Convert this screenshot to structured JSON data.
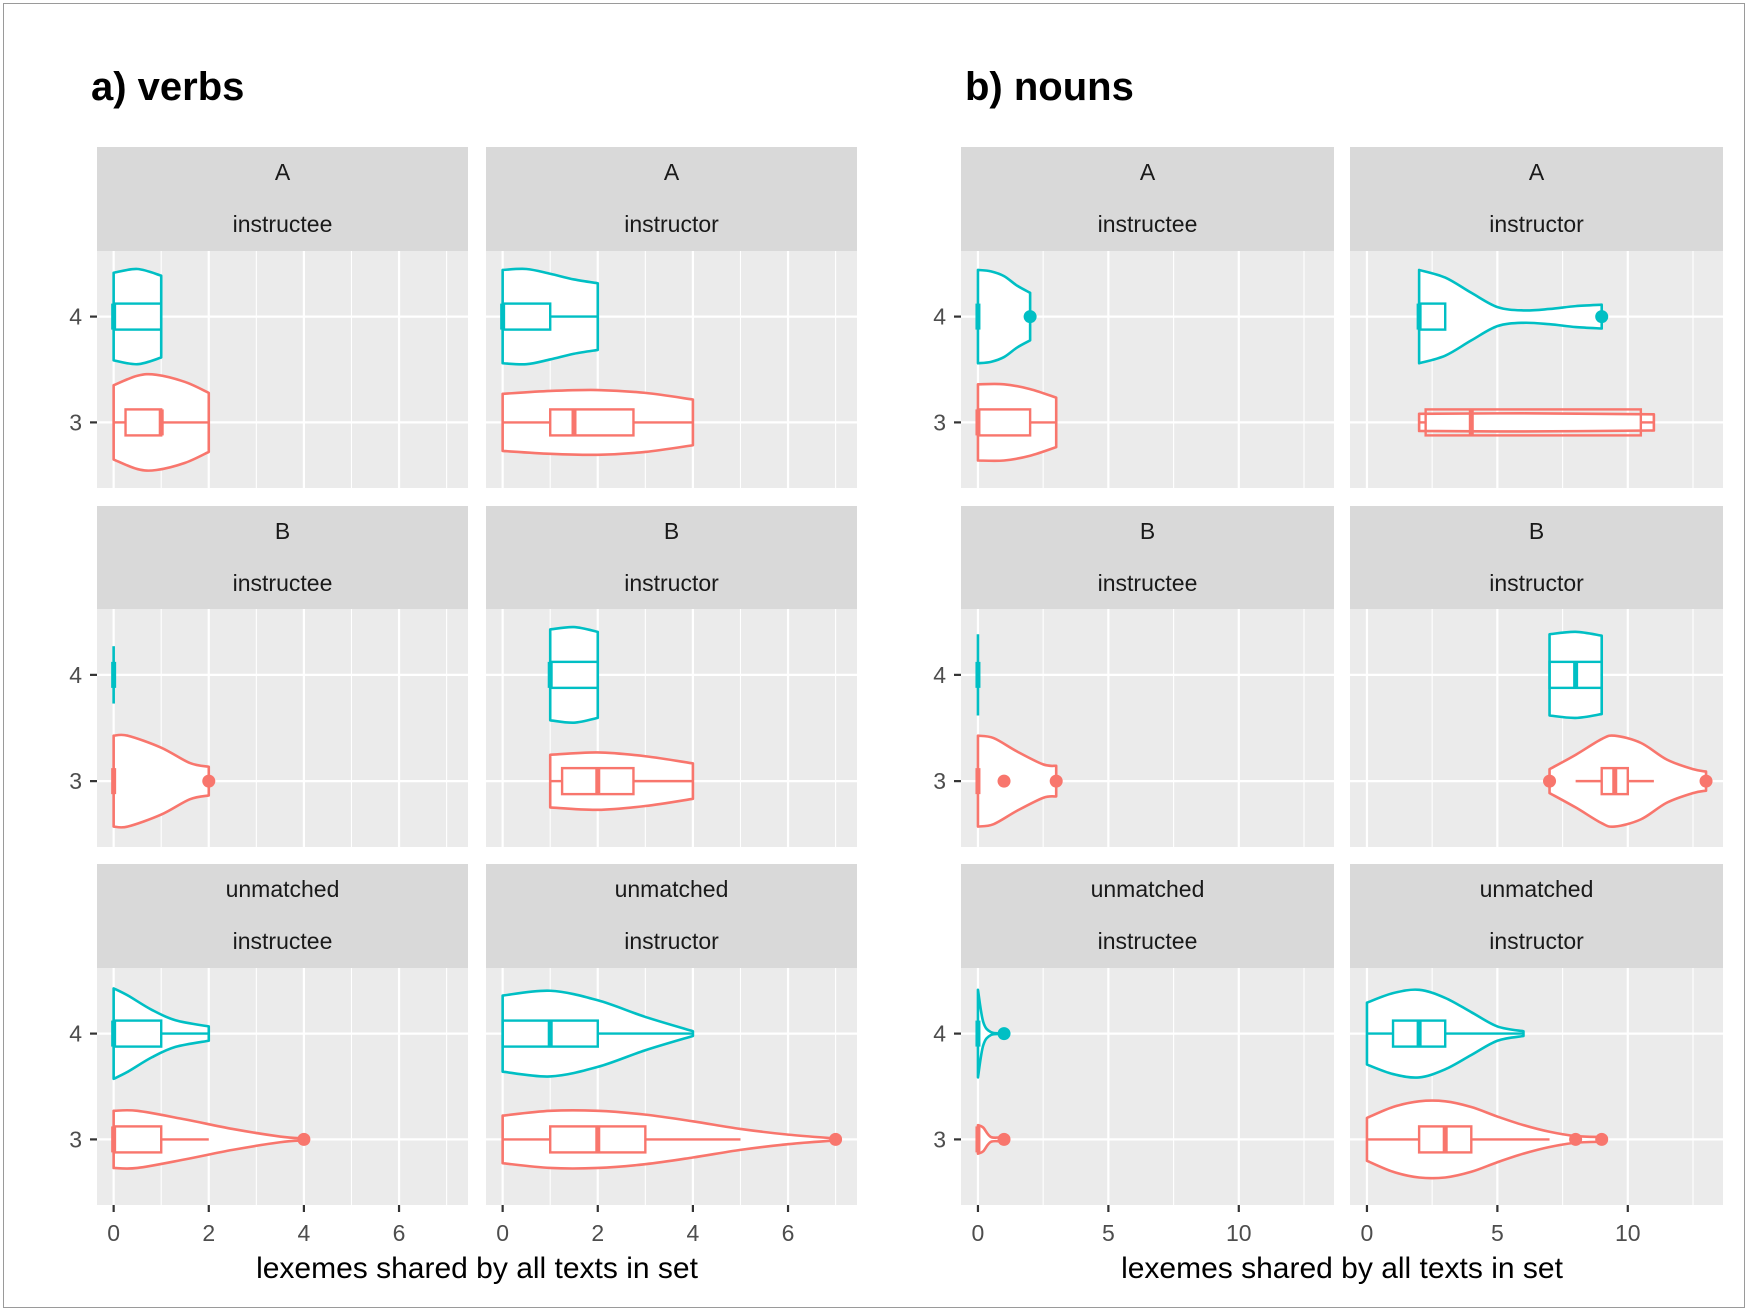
{
  "chart_data": {
    "type": "violin",
    "figure_titles": [
      "a) verbs",
      "b) nouns"
    ],
    "colors": {
      "3": "#F8766D",
      "4": "#00BFC4"
    },
    "panel_background": "#EBEBEB",
    "strip_background": "#D9D9D9",
    "plots": [
      {
        "title": "a) verbs",
        "xlabel": "lexemes shared by all texts in set",
        "ylabel": "",
        "xlim": [
          -0.35,
          7.45
        ],
        "xticks": [
          0,
          2,
          4,
          6
        ],
        "xtick_labels": [
          "0",
          "2",
          "4",
          "6"
        ],
        "yticks": [
          "4",
          "3"
        ],
        "facets": [
          {
            "row": "A",
            "col": "instructee",
            "series": [
              {
                "group": "4",
                "min": 0,
                "q1": 0,
                "median": 0,
                "q3": 1,
                "max": 1,
                "outliers": [],
                "density": {
                  "x": [
                    0,
                    0.5,
                    1
                  ],
                  "w": [
                    0.92,
                    1.0,
                    0.86
                  ]
                }
              },
              {
                "group": "3",
                "min": 0,
                "q1": 0.25,
                "median": 1,
                "q3": 1,
                "max": 2,
                "outliers": [],
                "density": {
                  "x": [
                    0,
                    0.5,
                    0.9,
                    1.5,
                    2
                  ],
                  "w": [
                    0.78,
                    0.98,
                    1.0,
                    0.85,
                    0.62
                  ]
                }
              }
            ]
          },
          {
            "row": "A",
            "col": "instructor",
            "series": [
              {
                "group": "4",
                "min": 0,
                "q1": 0,
                "median": 0,
                "q3": 1,
                "max": 2,
                "outliers": [],
                "density": {
                  "x": [
                    0,
                    0.5,
                    1,
                    1.5,
                    2
                  ],
                  "w": [
                    0.98,
                    1.0,
                    0.9,
                    0.78,
                    0.7
                  ]
                }
              },
              {
                "group": "3",
                "min": 0,
                "q1": 1,
                "median": 1.5,
                "q3": 2.75,
                "max": 4,
                "outliers": [],
                "density": {
                  "x": [
                    0,
                    1,
                    2,
                    3,
                    4
                  ],
                  "w": [
                    0.6,
                    0.66,
                    0.68,
                    0.62,
                    0.48
                  ]
                }
              }
            ]
          },
          {
            "row": "B",
            "col": "instructee",
            "series": [
              {
                "group": "4",
                "min": 0,
                "q1": 0,
                "median": 0,
                "q3": 0,
                "max": 0,
                "outliers": [],
                "density": {
                  "x": [
                    0
                  ],
                  "w": [
                    0.6
                  ]
                }
              },
              {
                "group": "3",
                "min": 0,
                "q1": 0,
                "median": 0,
                "q3": 0,
                "max": 0,
                "outliers": [
                  2
                ],
                "density": {
                  "x": [
                    0,
                    0.3,
                    1,
                    1.6,
                    2
                  ],
                  "w": [
                    0.95,
                    0.95,
                    0.7,
                    0.38,
                    0.3
                  ]
                }
              }
            ]
          },
          {
            "row": "B",
            "col": "instructor",
            "series": [
              {
                "group": "4",
                "min": 1,
                "q1": 1,
                "median": 1,
                "q3": 2,
                "max": 2,
                "outliers": [],
                "density": {
                  "x": [
                    1,
                    1.5,
                    2
                  ],
                  "w": [
                    0.95,
                    1.0,
                    0.9
                  ]
                }
              },
              {
                "group": "3",
                "min": 1,
                "q1": 1.25,
                "median": 2,
                "q3": 2.75,
                "max": 4,
                "outliers": [],
                "density": {
                  "x": [
                    1,
                    2,
                    3,
                    4
                  ],
                  "w": [
                    0.55,
                    0.6,
                    0.52,
                    0.37
                  ]
                }
              }
            ]
          },
          {
            "row": "unmatched",
            "col": "instructee",
            "series": [
              {
                "group": "4",
                "min": 0,
                "q1": 0,
                "median": 0,
                "q3": 1,
                "max": 2,
                "outliers": [],
                "density": {
                  "x": [
                    0,
                    0.3,
                    0.8,
                    1.3,
                    2
                  ],
                  "w": [
                    0.95,
                    0.8,
                    0.5,
                    0.28,
                    0.15
                  ]
                }
              },
              {
                "group": "3",
                "min": 0,
                "q1": 0,
                "median": 0,
                "q3": 1,
                "max": 2,
                "outliers": [
                  4
                ],
                "density": {
                  "x": [
                    0,
                    0.5,
                    1.5,
                    2.5,
                    3.5,
                    4
                  ],
                  "w": [
                    0.6,
                    0.6,
                    0.42,
                    0.22,
                    0.06,
                    0.02
                  ]
                }
              }
            ]
          },
          {
            "row": "unmatched",
            "col": "instructor",
            "series": [
              {
                "group": "4",
                "min": 0,
                "q1": 0,
                "median": 1,
                "q3": 2,
                "max": 4,
                "outliers": [],
                "density": {
                  "x": [
                    0,
                    1,
                    2,
                    3,
                    4
                  ],
                  "w": [
                    0.8,
                    0.9,
                    0.7,
                    0.35,
                    0.05
                  ]
                }
              },
              {
                "group": "3",
                "min": 0,
                "q1": 1,
                "median": 2,
                "q3": 3,
                "max": 5,
                "outliers": [
                  7
                ],
                "density": {
                  "x": [
                    0,
                    1,
                    2,
                    3,
                    4,
                    5,
                    6,
                    7
                  ],
                  "w": [
                    0.5,
                    0.6,
                    0.6,
                    0.52,
                    0.38,
                    0.22,
                    0.1,
                    0.02
                  ]
                }
              }
            ]
          }
        ]
      },
      {
        "title": "b) nouns",
        "xlabel": "lexemes shared by all texts in set",
        "ylabel": "",
        "xlim": [
          -0.65,
          13.65
        ],
        "xticks": [
          0,
          5,
          10
        ],
        "xtick_labels": [
          "0",
          "5",
          "10"
        ],
        "yticks": [
          "4",
          "3"
        ],
        "facets": [
          {
            "row": "A",
            "col": "instructee",
            "series": [
              {
                "group": "4",
                "min": 0,
                "q1": 0,
                "median": 0,
                "q3": 0,
                "max": 0,
                "outliers": [
                  2
                ],
                "density": {
                  "x": [
                    0,
                    0.5,
                    1,
                    1.5,
                    2
                  ],
                  "w": [
                    0.98,
                    0.95,
                    0.85,
                    0.65,
                    0.5
                  ]
                }
              },
              {
                "group": "3",
                "min": 0,
                "q1": 0,
                "median": 0,
                "q3": 2,
                "max": 3,
                "outliers": [],
                "density": {
                  "x": [
                    0,
                    1,
                    2,
                    3
                  ],
                  "w": [
                    0.8,
                    0.8,
                    0.7,
                    0.52
                  ]
                }
              }
            ]
          },
          {
            "row": "A",
            "col": "instructor",
            "series": [
              {
                "group": "4",
                "min": 2,
                "q1": 2,
                "median": 2,
                "q3": 3,
                "max": 3,
                "outliers": [
                  9
                ],
                "density": {
                  "x": [
                    2,
                    3,
                    4,
                    5,
                    6,
                    7,
                    8,
                    9
                  ],
                  "w": [
                    0.98,
                    0.82,
                    0.5,
                    0.2,
                    0.13,
                    0.16,
                    0.22,
                    0.25
                  ]
                }
              },
              {
                "group": "3",
                "min": 2,
                "q1": 2.25,
                "median": 4,
                "q3": 10.5,
                "max": 11,
                "outliers": [],
                "density": {
                  "x": [
                    2,
                    6,
                    11
                  ],
                  "w": [
                    0.18,
                    0.19,
                    0.17
                  ]
                }
              }
            ]
          },
          {
            "row": "B",
            "col": "instructee",
            "series": [
              {
                "group": "4",
                "min": 0,
                "q1": 0,
                "median": 0,
                "q3": 0,
                "max": 0,
                "outliers": [],
                "density": {
                  "x": [
                    0
                  ],
                  "w": [
                    0.85
                  ]
                }
              },
              {
                "group": "3",
                "min": 0,
                "q1": 0,
                "median": 0,
                "q3": 0,
                "max": 0,
                "outliers": [
                  1,
                  3
                ],
                "density": {
                  "x": [
                    0,
                    0.6,
                    1.5,
                    2.5,
                    3
                  ],
                  "w": [
                    0.95,
                    0.9,
                    0.62,
                    0.35,
                    0.32
                  ]
                }
              }
            ]
          },
          {
            "row": "B",
            "col": "instructor",
            "series": [
              {
                "group": "4",
                "min": 7,
                "q1": 7,
                "median": 8,
                "q3": 9,
                "max": 9,
                "outliers": [],
                "density": {
                  "x": [
                    7,
                    8,
                    9
                  ],
                  "w": [
                    0.85,
                    0.9,
                    0.82
                  ]
                }
              },
              {
                "group": "3",
                "min": 8,
                "q1": 9,
                "median": 9.5,
                "q3": 10,
                "max": 11,
                "outliers": [
                  7,
                  13
                ],
                "density": {
                  "x": [
                    7,
                    8,
                    9,
                    9.5,
                    10.5,
                    11.5,
                    12.5,
                    13
                  ],
                  "w": [
                    0.25,
                    0.55,
                    0.88,
                    0.95,
                    0.8,
                    0.45,
                    0.25,
                    0.2
                  ]
                }
              }
            ]
          },
          {
            "row": "unmatched",
            "col": "instructee",
            "series": [
              {
                "group": "4",
                "min": 0,
                "q1": 0,
                "median": 0,
                "q3": 0,
                "max": 0,
                "outliers": [
                  1
                ],
                "density": {
                  "x": [
                    0,
                    0.2,
                    0.5,
                    1
                  ],
                  "w": [
                    0.92,
                    0.25,
                    0.03,
                    0.01
                  ]
                }
              },
              {
                "group": "3",
                "min": 0,
                "q1": 0,
                "median": 0,
                "q3": 0,
                "max": 0,
                "outliers": [
                  1
                ],
                "density": {
                  "x": [
                    0,
                    0.2,
                    0.5,
                    1
                  ],
                  "w": [
                    0.3,
                    0.25,
                    0.05,
                    0.05
                  ]
                }
              }
            ]
          },
          {
            "row": "unmatched",
            "col": "instructor",
            "series": [
              {
                "group": "4",
                "min": 0,
                "q1": 1,
                "median": 2,
                "q3": 3,
                "max": 6,
                "outliers": [],
                "density": {
                  "x": [
                    0,
                    1,
                    2,
                    3,
                    4,
                    5,
                    6
                  ],
                  "w": [
                    0.65,
                    0.85,
                    0.92,
                    0.75,
                    0.45,
                    0.15,
                    0.05
                  ]
                }
              },
              {
                "group": "3",
                "min": 0,
                "q1": 2,
                "median": 3,
                "q3": 4,
                "max": 7,
                "outliers": [
                  8,
                  9
                ],
                "density": {
                  "x": [
                    0,
                    1,
                    2,
                    3,
                    4,
                    5,
                    6,
                    7,
                    8,
                    9
                  ],
                  "w": [
                    0.45,
                    0.68,
                    0.8,
                    0.8,
                    0.68,
                    0.48,
                    0.3,
                    0.16,
                    0.07,
                    0.05
                  ]
                }
              }
            ]
          }
        ]
      }
    ]
  }
}
